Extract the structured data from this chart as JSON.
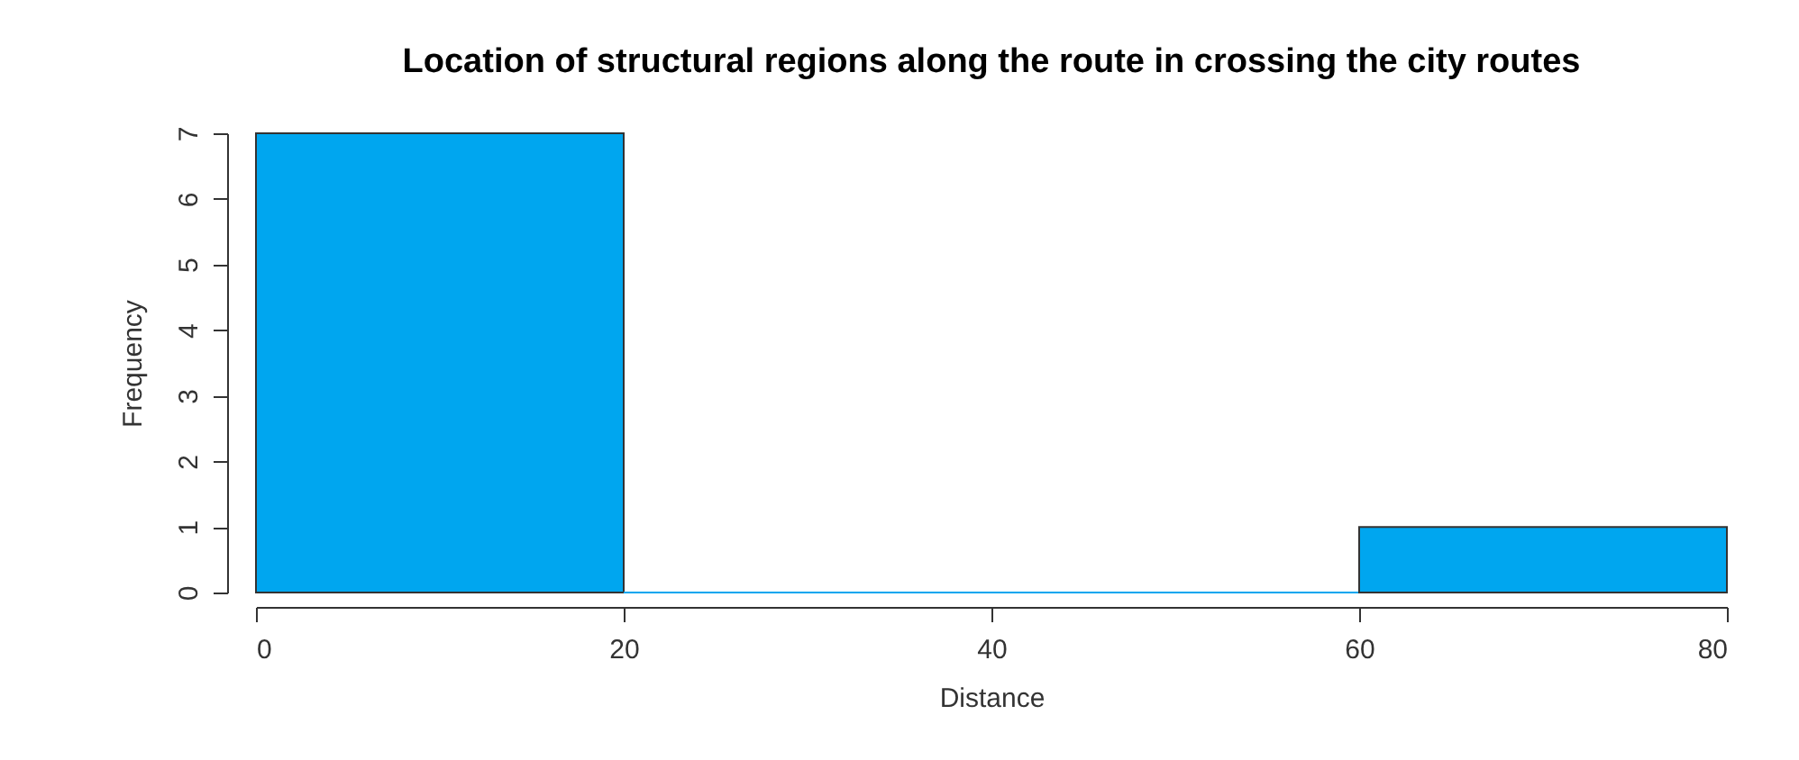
{
  "chart_data": {
    "type": "histogram",
    "title": "Location of structural regions along the route in crossing the city routes",
    "xlabel": "Distance",
    "ylabel": "Frequency",
    "bins": [
      0,
      20,
      40,
      60,
      80
    ],
    "values": [
      7,
      0,
      0,
      1
    ],
    "color": "#00a6ef",
    "xlim": [
      0,
      80
    ],
    "xticks": [
      0,
      20,
      40,
      60,
      80
    ],
    "ylim": [
      0,
      7
    ],
    "yticks": [
      0,
      1,
      2,
      3,
      4,
      5,
      6,
      7
    ],
    "grid": false
  }
}
